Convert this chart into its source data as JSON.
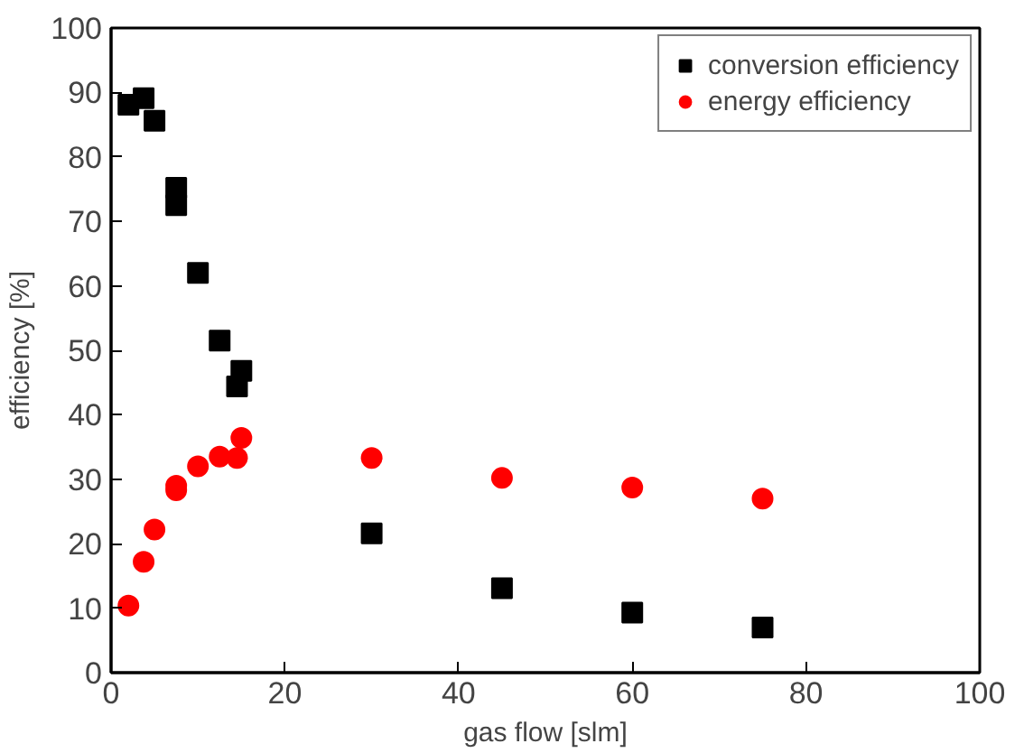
{
  "chart_data": {
    "type": "scatter",
    "xlabel": "gas flow [slm]",
    "ylabel": "efficiency [%]",
    "xlim": [
      0,
      100
    ],
    "ylim": [
      0,
      100
    ],
    "xticks": [
      0,
      20,
      40,
      60,
      80,
      100
    ],
    "yticks": [
      0,
      10,
      20,
      30,
      40,
      50,
      60,
      70,
      80,
      90,
      100
    ],
    "grid": false,
    "legend": "top right",
    "series": [
      {
        "name": "conversion efficiency",
        "color": "#000000",
        "marker": "square",
        "x": [
          2,
          3.75,
          5,
          7.5,
          7.5,
          10,
          12.5,
          14.5,
          15,
          30,
          45,
          60,
          75
        ],
        "values": [
          88.1,
          89.1,
          85.6,
          75.2,
          72.5,
          62.0,
          51.5,
          44.4,
          46.8,
          21.6,
          13.1,
          9.3,
          7.0
        ]
      },
      {
        "name": "energy efficiency",
        "color": "#ff0000",
        "marker": "circle",
        "x": [
          2,
          3.75,
          5,
          7.5,
          7.5,
          10,
          12.5,
          14.5,
          15,
          30,
          45,
          60,
          75
        ],
        "values": [
          10.4,
          17.2,
          22.2,
          28.3,
          29.0,
          32.0,
          33.5,
          33.3,
          36.4,
          33.3,
          30.2,
          28.7,
          27.0
        ]
      }
    ]
  }
}
